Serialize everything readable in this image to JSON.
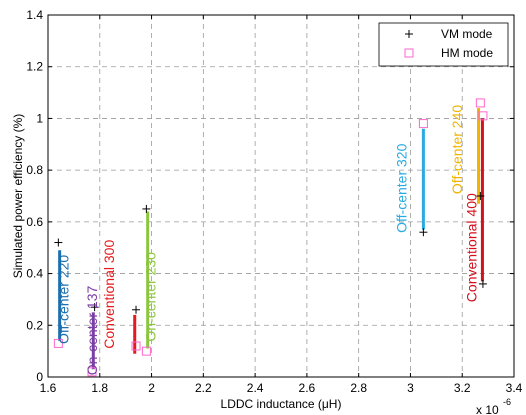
{
  "chart_data": {
    "type": "scatter",
    "xlabel": "LDDC inductance (μH)",
    "ylabel": "Simulated power efficiency (%)",
    "x_multiplier": "x 10",
    "x_exponent": "-6",
    "xlim": [
      1.6,
      3.4
    ],
    "ylim": [
      0,
      1.4
    ],
    "xticks": [
      "1.6",
      "1.8",
      "2",
      "2.2",
      "2.4",
      "2.6",
      "2.8",
      "3",
      "3.2",
      "3.4"
    ],
    "yticks": [
      "0",
      "0.2",
      "0.4",
      "0.6",
      "0.8",
      "1",
      "1.2",
      "1.4"
    ],
    "grid": true,
    "legend": {
      "location": "top-right",
      "entries": [
        {
          "name": "VM mode",
          "marker": "plus",
          "color": "#000000"
        },
        {
          "name": "HM mode",
          "marker": "square",
          "color": "#ff66cc"
        }
      ]
    },
    "series": [
      {
        "name": "VM mode",
        "points": [
          [
            1.64,
            0.52
          ],
          [
            1.78,
            0.27
          ],
          [
            1.94,
            0.26
          ],
          [
            1.98,
            0.65
          ],
          [
            3.05,
            0.56
          ],
          [
            3.27,
            0.7
          ],
          [
            3.28,
            0.36
          ]
        ]
      },
      {
        "name": "HM mode",
        "points": [
          [
            1.64,
            0.13
          ],
          [
            1.77,
            0.02
          ],
          [
            1.94,
            0.12
          ],
          [
            1.98,
            0.1
          ],
          [
            3.05,
            0.98
          ],
          [
            3.27,
            1.06
          ],
          [
            3.28,
            1.01
          ]
        ]
      }
    ],
    "ranges": [
      {
        "label": "Off-center 220",
        "x": 1.645,
        "y_low": 0.14,
        "y_high": 0.49,
        "color": "#1a6fb0",
        "label_x": 1.68,
        "label_y": 0.3
      },
      {
        "label": "On-center 137",
        "x": 1.775,
        "y_low": 0.03,
        "y_high": 0.25,
        "color": "#7b3ea5",
        "label_x": 1.79,
        "label_y": 0.18
      },
      {
        "label": "Conventional 300",
        "x": 1.935,
        "y_low": 0.09,
        "y_high": 0.24,
        "color": "#e41a1c",
        "label_x": 1.855,
        "label_y": 0.32
      },
      {
        "label": "On-center 230",
        "x": 1.985,
        "y_low": 0.11,
        "y_high": 0.64,
        "color": "#8cc63f",
        "label_x": 2.015,
        "label_y": 0.31
      },
      {
        "label": "Off-center 320",
        "x": 3.05,
        "y_low": 0.57,
        "y_high": 0.96,
        "color": "#29abe2",
        "label_x": 2.985,
        "label_y": 0.73
      },
      {
        "label": "Off-center 240",
        "x": 3.263,
        "y_low": 0.67,
        "y_high": 1.04,
        "color": "#f0b400",
        "label_x": 3.2,
        "label_y": 0.88
      },
      {
        "label": "Conventional 400",
        "x": 3.278,
        "y_low": 0.37,
        "y_high": 1.0,
        "color": "#d3101c",
        "label_x": 3.255,
        "label_y": 0.5
      }
    ]
  }
}
